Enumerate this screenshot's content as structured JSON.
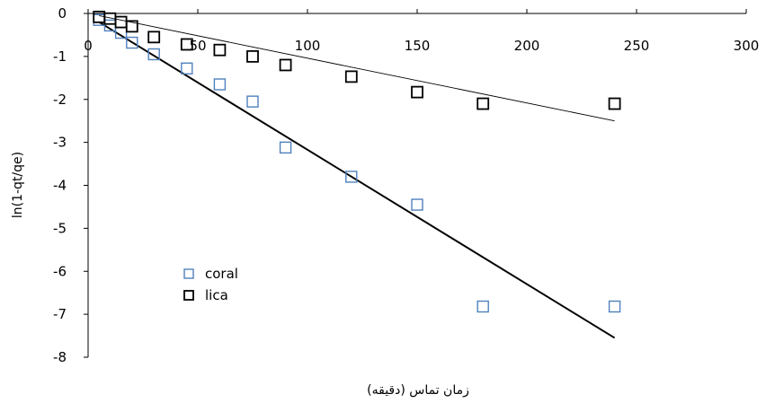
{
  "chart_data": {
    "type": "scatter",
    "xlabel": "زمان تماس (دقیقه)",
    "ylabel": "ln(1-qt/qe)",
    "xlim": [
      0,
      300
    ],
    "ylim": [
      -8,
      0
    ],
    "xticks": [
      "0",
      "50",
      "100",
      "150",
      "200",
      "250",
      "300"
    ],
    "yticks": [
      "0",
      "-1",
      "-2",
      "-3",
      "-4",
      "-5",
      "-6",
      "-7",
      "-8"
    ],
    "legend_position": "bottom-left",
    "grid": false,
    "series": [
      {
        "name": "coral",
        "marker": "open-square",
        "color": "#4F81BD",
        "x": [
          5,
          10,
          15,
          20,
          30,
          45,
          60,
          75,
          90,
          120,
          150,
          180,
          240
        ],
        "y": [
          -0.15,
          -0.28,
          -0.45,
          -0.68,
          -0.95,
          -1.28,
          -1.65,
          -2.05,
          -3.12,
          -3.8,
          -4.45,
          -6.82,
          -6.82
        ],
        "trendline": {
          "x": [
            5,
            240
          ],
          "y": [
            -0.2,
            -7.55
          ],
          "color": "#000000"
        }
      },
      {
        "name": "lica",
        "marker": "open-square",
        "color": "#000000",
        "x": [
          5,
          10,
          15,
          20,
          30,
          45,
          60,
          75,
          90,
          120,
          150,
          180,
          240
        ],
        "y": [
          -0.08,
          -0.12,
          -0.2,
          -0.3,
          -0.55,
          -0.72,
          -0.85,
          -1.0,
          -1.2,
          -1.47,
          -1.83,
          -2.1,
          -2.1
        ],
        "trendline": {
          "x": [
            5,
            240
          ],
          "y": [
            -0.05,
            -2.5
          ],
          "color": "#000000"
        }
      }
    ]
  }
}
